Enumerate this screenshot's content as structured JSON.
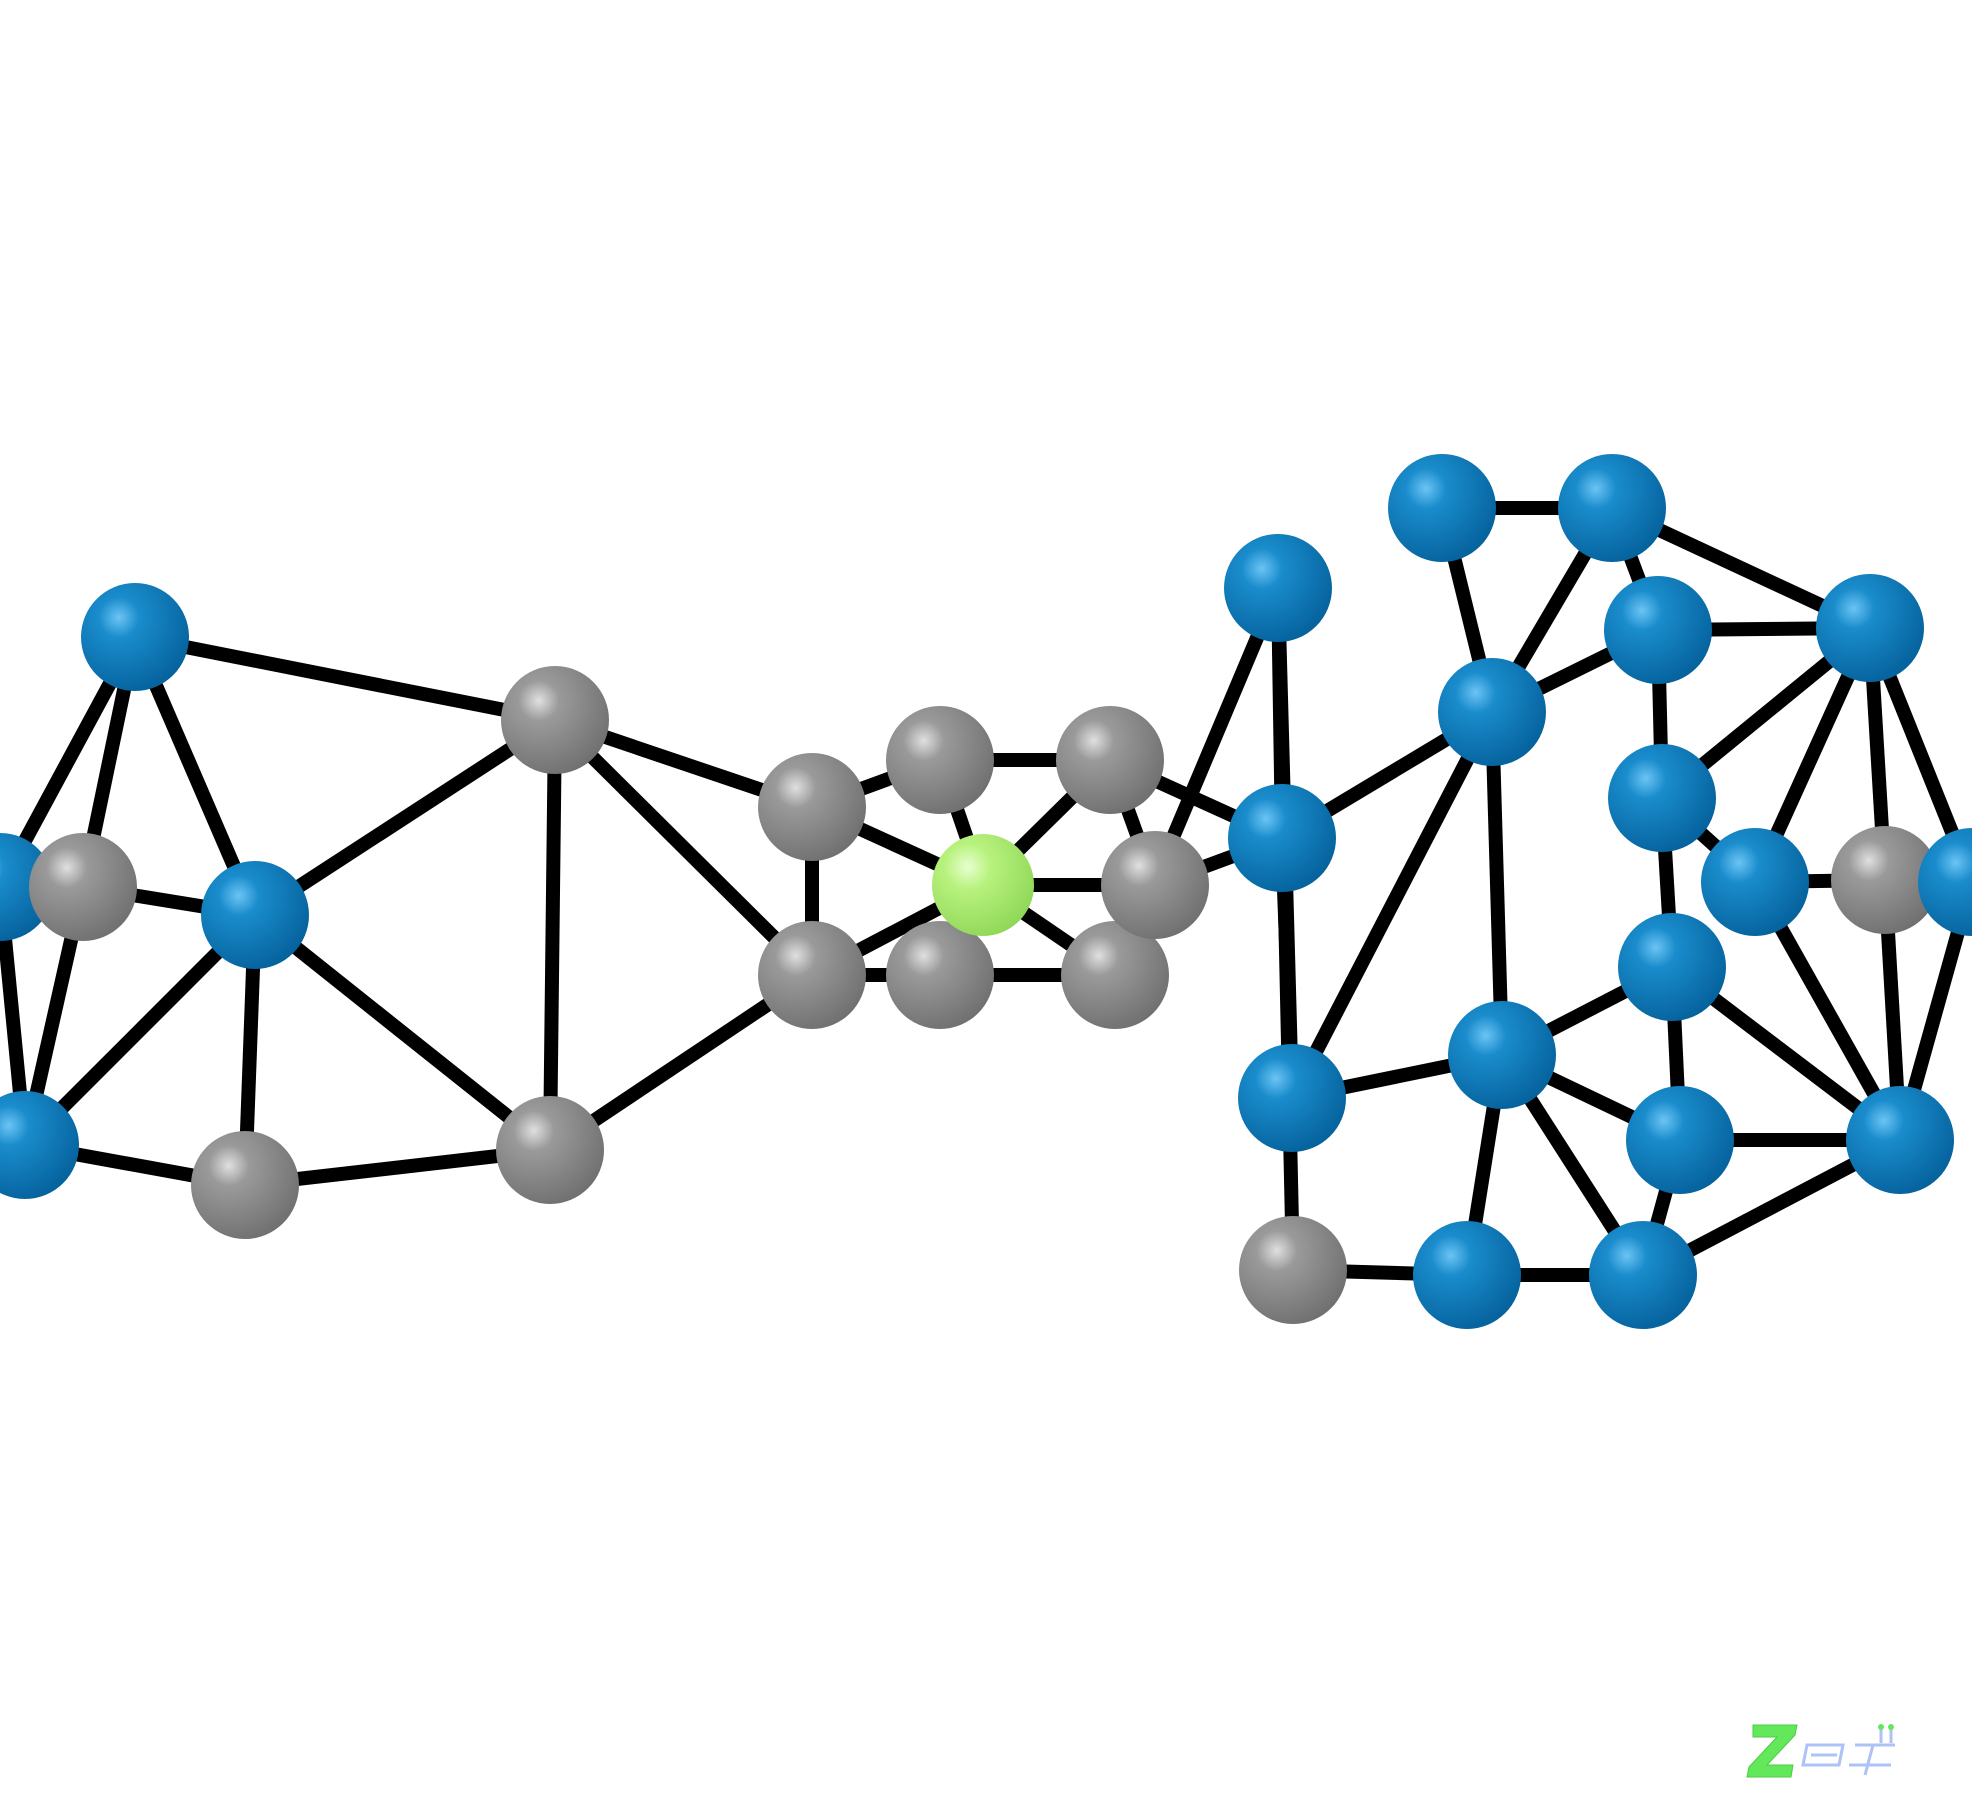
{
  "diagram": {
    "type": "molecular-structure",
    "colors": {
      "background": "#ffffff",
      "bond": "#000000",
      "atom_blue": "#0a78b8",
      "atom_gray": "#8c8c8c",
      "atom_green": "#b4f07a"
    },
    "atom_kinds": [
      "blue",
      "gray",
      "green"
    ]
  },
  "watermark": {
    "text": "",
    "colors": {
      "z": "#62e85a",
      "rest": "#9fb8f5"
    }
  }
}
